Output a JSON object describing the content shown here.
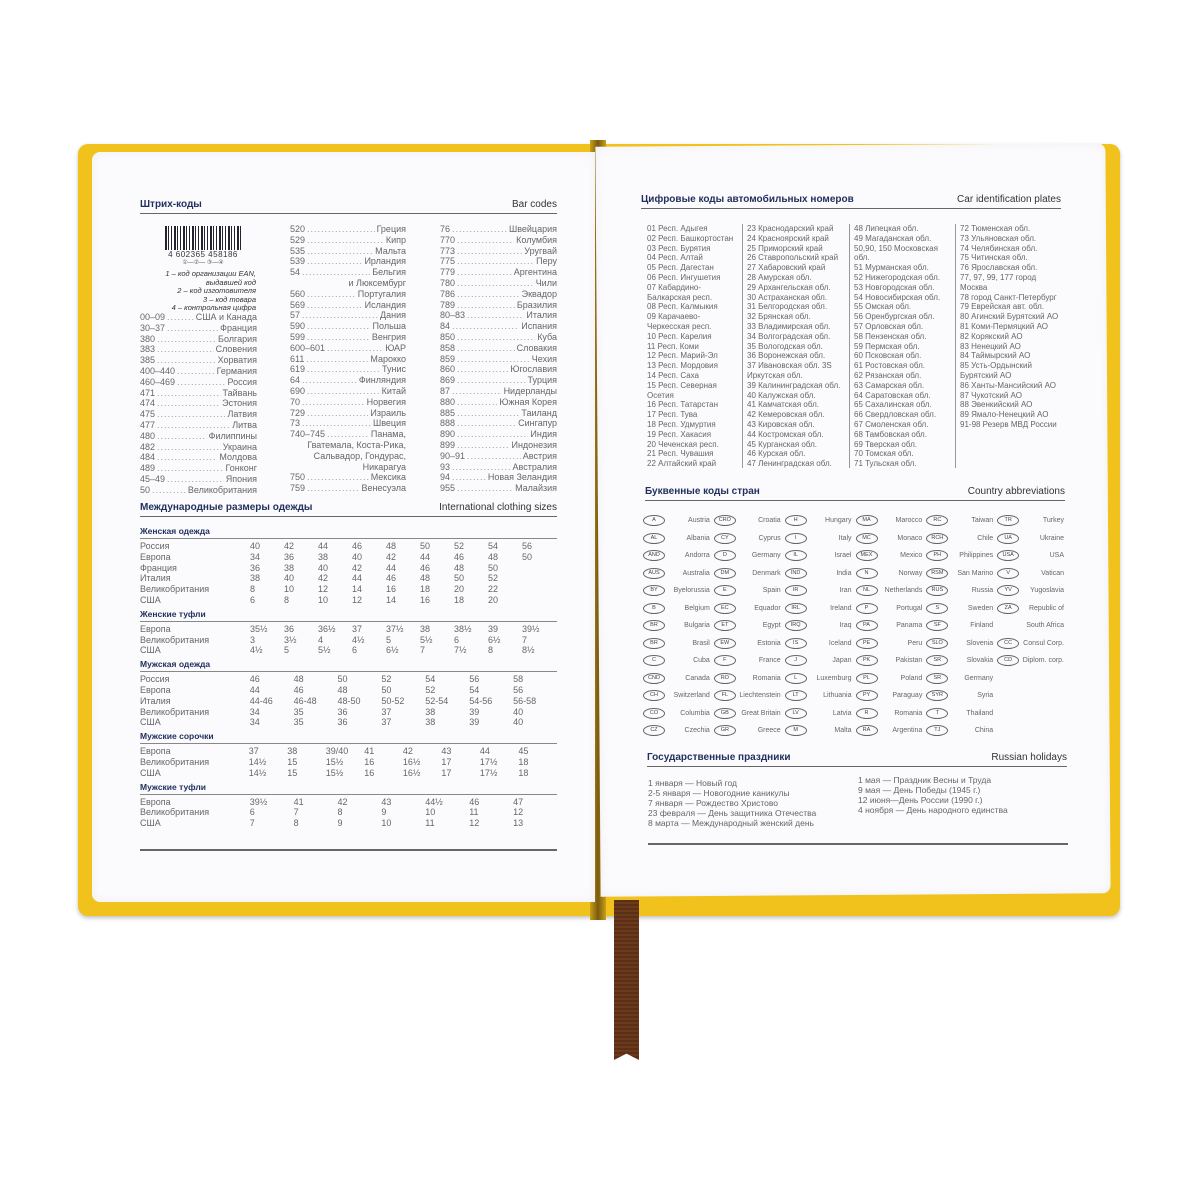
{
  "colors": {
    "cover": "#f1c11c",
    "heading": "#22305e",
    "ribbon": "#6b3a1c"
  },
  "barcodes": {
    "title_ru": "Штрих-коды",
    "title_en": "Bar codes",
    "sample_number": "4 602365 458186",
    "sample_marks": "①—②— ③—④",
    "legend": [
      "1 – код организации EAN,",
      "выдавшей код",
      "2 – код изготовителя",
      "3 – код товара",
      "4 – контрольная цифра"
    ],
    "col1": [
      [
        "00–09",
        "США и Канада"
      ],
      [
        "30–37",
        "Франция"
      ],
      [
        "380",
        "Болгария"
      ],
      [
        "383",
        "Словения"
      ],
      [
        "385",
        "Хорватия"
      ],
      [
        "400–440",
        "Германия"
      ],
      [
        "460–469",
        "Россия"
      ],
      [
        "471",
        "Тайвань"
      ],
      [
        "474",
        "Эстония"
      ],
      [
        "475",
        "Латвия"
      ],
      [
        "477",
        "Литва"
      ],
      [
        "480",
        "Филиппины"
      ],
      [
        "482",
        "Украина"
      ],
      [
        "484",
        "Молдова"
      ],
      [
        "489",
        "Гонконг"
      ],
      [
        "45–49",
        "Япония"
      ],
      [
        "50",
        "Великобритания"
      ]
    ],
    "col2": [
      [
        "520",
        "Греция"
      ],
      [
        "529",
        "Кипр"
      ],
      [
        "535",
        "Мальта"
      ],
      [
        "539",
        "Ирландия"
      ],
      [
        "54",
        "Бельгия"
      ],
      [
        "",
        "и Люксембург"
      ],
      [
        "560",
        "Португалия"
      ],
      [
        "569",
        "Исландия"
      ],
      [
        "57",
        "Дания"
      ],
      [
        "590",
        "Польша"
      ],
      [
        "599",
        "Венгрия"
      ],
      [
        "600–601",
        "ЮАР"
      ],
      [
        "611",
        "Марокко"
      ],
      [
        "619",
        "Тунис"
      ],
      [
        "64",
        "Финляндия"
      ],
      [
        "690",
        "Китай"
      ],
      [
        "70",
        "Норвегия"
      ],
      [
        "729",
        "Израиль"
      ],
      [
        "73",
        "Швеция"
      ],
      [
        "740–745",
        "Панама,"
      ],
      [
        "",
        "Гватемала, Коста-Рика,"
      ],
      [
        "",
        "Сальвадор, Гондурас,"
      ],
      [
        "",
        "Никарагуа"
      ],
      [
        "750",
        "Мексика"
      ],
      [
        "759",
        "Венесуэла"
      ]
    ],
    "col3": [
      [
        "76",
        "Швейцария"
      ],
      [
        "770",
        "Колумбия"
      ],
      [
        "773",
        "Уругвай"
      ],
      [
        "775",
        "Перу"
      ],
      [
        "779",
        "Аргентина"
      ],
      [
        "780",
        "Чили"
      ],
      [
        "786",
        "Эквадор"
      ],
      [
        "789",
        "Бразилия"
      ],
      [
        "80–83",
        "Италия"
      ],
      [
        "84",
        "Испания"
      ],
      [
        "850",
        "Куба"
      ],
      [
        "858",
        "Словакия"
      ],
      [
        "859",
        "Чехия"
      ],
      [
        "860",
        "Югославия"
      ],
      [
        "869",
        "Турция"
      ],
      [
        "87",
        "Нидерланды"
      ],
      [
        "880",
        "Южная Корея"
      ],
      [
        "885",
        "Таиланд"
      ],
      [
        "888",
        "Сингапур"
      ],
      [
        "890",
        "Индия"
      ],
      [
        "899",
        "Индонезия"
      ],
      [
        "90–91",
        "Австрия"
      ],
      [
        "93",
        "Австралия"
      ],
      [
        "94",
        "Новая Зеландия"
      ],
      [
        "955",
        "Малайзия"
      ]
    ]
  },
  "clothing": {
    "title_ru": "Международные размеры одежды",
    "title_en": "International clothing sizes",
    "sections": [
      {
        "title": "Женская одежда",
        "rows": [
          [
            "Россия",
            "40",
            "42",
            "44",
            "46",
            "48",
            "50",
            "52",
            "54",
            "56"
          ],
          [
            "Европа",
            "34",
            "36",
            "38",
            "40",
            "42",
            "44",
            "46",
            "48",
            "50"
          ],
          [
            "Франция",
            "36",
            "38",
            "40",
            "42",
            "44",
            "46",
            "48",
            "50"
          ],
          [
            "Италия",
            "38",
            "40",
            "42",
            "44",
            "46",
            "48",
            "50",
            "52"
          ],
          [
            "Великобритания",
            "8",
            "10",
            "12",
            "14",
            "16",
            "18",
            "20",
            "22"
          ],
          [
            "США",
            "6",
            "8",
            "10",
            "12",
            "14",
            "16",
            "18",
            "20"
          ]
        ]
      },
      {
        "title": "Женские туфли",
        "rows": [
          [
            "Европа",
            "35½",
            "36",
            "36½",
            "37",
            "37½",
            "38",
            "38½",
            "39",
            "39½"
          ],
          [
            "Великобритания",
            "3",
            "3½",
            "4",
            "4½",
            "5",
            "5½",
            "6",
            "6½",
            "7"
          ],
          [
            "США",
            "4½",
            "5",
            "5½",
            "6",
            "6½",
            "7",
            "7½",
            "8",
            "8½"
          ]
        ]
      },
      {
        "title": "Мужская одежда",
        "wide": true,
        "rows": [
          [
            "Россия",
            "46",
            "48",
            "50",
            "52",
            "54",
            "56",
            "58"
          ],
          [
            "Европа",
            "44",
            "46",
            "48",
            "50",
            "52",
            "54",
            "56"
          ],
          [
            "Италия",
            "44-46",
            "46-48",
            "48-50",
            "50-52",
            "52-54",
            "54-56",
            "56-58"
          ],
          [
            "Великобритания",
            "34",
            "35",
            "36",
            "37",
            "38",
            "39",
            "40"
          ],
          [
            "США",
            "34",
            "35",
            "36",
            "37",
            "38",
            "39",
            "40"
          ]
        ]
      },
      {
        "title": "Мужские сорочки",
        "mid": true,
        "rows": [
          [
            "Европа",
            "37",
            "38",
            "39/40",
            "41",
            "42",
            "43",
            "44",
            "45"
          ],
          [
            "Великобритания",
            "14½",
            "15",
            "15½",
            "16",
            "16½",
            "17",
            "17½",
            "18"
          ],
          [
            "США",
            "14½",
            "15",
            "15½",
            "16",
            "16½",
            "17",
            "17½",
            "18"
          ]
        ]
      },
      {
        "title": "Мужские туфли",
        "wide": true,
        "rows": [
          [
            "Европа",
            "39½",
            "41",
            "42",
            "43",
            "44½",
            "46",
            "47"
          ],
          [
            "Великобритания",
            "6",
            "7",
            "8",
            "9",
            "10",
            "11",
            "12"
          ],
          [
            "США",
            "7",
            "8",
            "9",
            "10",
            "11",
            "12",
            "13"
          ]
        ]
      }
    ]
  },
  "car_plates": {
    "title_ru": "Цифровые коды автомобильных номеров",
    "title_en": "Car identification plates",
    "columns": [
      [
        "01 Респ. Адыгея",
        "02 Респ. Башкортостан",
        "03 Респ. Бурятия",
        "04 Респ. Алтай",
        "05 Респ. Дагестан",
        "06 Респ. Ингушетия",
        "07 Кабардино-",
        "Балкарская респ.",
        "08 Респ. Калмыкия",
        "09 Карачаево-",
        "Черкесская респ.",
        "10 Респ. Карелия",
        "11 Респ. Коми",
        "12 Респ. Марий-Эл",
        "13 Респ. Мордовия",
        "14 Респ. Саха",
        "15 Респ. Северная",
        "Осетия",
        "16 Респ. Татарстан",
        "17 Респ. Тува",
        "18 Респ. Удмуртия",
        "19 Респ. Хакасия",
        "20 Чеченская респ.",
        "21 Респ. Чувашия",
        "22 Алтайский край"
      ],
      [
        "23 Краснодарский край",
        "24 Красноярский край",
        "25 Приморский край",
        "26 Ставропольский край",
        "27 Хабаровский край",
        "28 Амурская обл.",
        "29 Архангельская обл.",
        "30 Астраханская обл.",
        "31 Белгородская обл.",
        "32 Брянская обл.",
        "33 Владимирская обл.",
        "34 Волгоградская обл.",
        "35 Вологодская обл.",
        "36 Воронежская обл.",
        "37 Ивановская обл. 3S",
        "Иркутская обл.",
        "39 Калининградская обл.",
        "40 Калужская обл.",
        "41 Камчатская обл.",
        "42 Кемеровская обл.",
        "43 Кировская обл.",
        "44 Костромская обл.",
        "45 Курганская обл.",
        "46 Курская обл.",
        "47 Ленинградская обл."
      ],
      [
        "48 Липецкая обл.",
        "49 Магаданская обл.",
        "50,90, 150 Московская",
        "обл.",
        "51 Мурманская обл.",
        "52 Нижегородская обл.",
        "53 Новгородская обл.",
        "54 Новосибирская обл.",
        "55 Омская обл.",
        "56 Оренбургская обл.",
        "57 Орловская обл.",
        "58 Пензенская обл.",
        "59 Пермская обл.",
        "60 Псковская обл.",
        "61 Ростовская обл.",
        "62 Рязанская обл.",
        "63 Самарская обл.",
        "64 Саратовская обл.",
        "65 Сахалинская обл.",
        "66 Свердловская обл.",
        "67 Смоленская обл.",
        "68 Тамбовская обл.",
        "69 Тверская обл.",
        "70 Томская обл.",
        "71 Тульская обл."
      ],
      [
        "72 Тюменская обл.",
        "73 Ульяновская обл.",
        "74 Челябинская обл.",
        "75 Читинская обл.",
        "76 Ярославская обл.",
        "77, 97, 99, 177 город",
        "Москва",
        "78 город Санкт-Петербург",
        "79 Еврейская авт. обл.",
        "80 Агинский Бурятский АО",
        "81 Коми-Пермяцкий АО",
        "82 Корякский АО",
        "83 Ненецкий АО",
        "84 Таймырский АО",
        "85 Усть-Ордынский",
        "Бурятский АО",
        "86 Ханты-Мансийский АО",
        "87 Чукотский АО",
        "88 Эвенкийский АО",
        "89 Ямало-Ненецкий АО",
        "91-98 Резерв МВД России"
      ]
    ]
  },
  "countries": {
    "title_ru": "Буквенные коды стран",
    "title_en": "Country abbreviations",
    "columns": [
      [
        [
          "A",
          "Austria"
        ],
        [
          "AL",
          "Albania"
        ],
        [
          "AND",
          "Andorra"
        ],
        [
          "AUS",
          "Australia"
        ],
        [
          "BY",
          "Byelorussia"
        ],
        [
          "B",
          "Belgium"
        ],
        [
          "BR",
          "Bulgaria"
        ],
        [
          "BR",
          "Brasil"
        ],
        [
          "C",
          "Cuba"
        ],
        [
          "CND",
          "Canada"
        ],
        [
          "CH",
          "Switzerland"
        ],
        [
          "CO",
          "Columbia"
        ],
        [
          "CZ",
          "Czechia"
        ]
      ],
      [
        [
          "CRO",
          "Croatia"
        ],
        [
          "CY",
          "Cyprus"
        ],
        [
          "D",
          "Germany"
        ],
        [
          "DM",
          "Denmark"
        ],
        [
          "E",
          "Spain"
        ],
        [
          "EC",
          "Equador"
        ],
        [
          "ET",
          "Egypt"
        ],
        [
          "EW",
          "Estonia"
        ],
        [
          "F",
          "France"
        ],
        [
          "RO",
          "Romania"
        ],
        [
          "FL",
          "Liechtenstein"
        ],
        [
          "GB",
          "Great Britain"
        ],
        [
          "GR",
          "Greece"
        ]
      ],
      [
        [
          "H",
          "Hungary"
        ],
        [
          "I",
          "Italy"
        ],
        [
          "IL",
          "Israel"
        ],
        [
          "IND",
          "India"
        ],
        [
          "IR",
          "Iran"
        ],
        [
          "IRL",
          "Ireland"
        ],
        [
          "IRQ",
          "Iraq"
        ],
        [
          "IS",
          "Iceland"
        ],
        [
          "J",
          "Japan"
        ],
        [
          "L",
          "Luxemburg"
        ],
        [
          "LT",
          "Lithuania"
        ],
        [
          "LV",
          "Latvia"
        ],
        [
          "M",
          "Malta"
        ]
      ],
      [
        [
          "MA",
          "Marocco"
        ],
        [
          "MC",
          "Monaco"
        ],
        [
          "MEX",
          "Mexico"
        ],
        [
          "N",
          "Norway"
        ],
        [
          "NL",
          "Netherlands"
        ],
        [
          "P",
          "Portugal"
        ],
        [
          "PA",
          "Panama"
        ],
        [
          "PE",
          "Peru"
        ],
        [
          "PK",
          "Pakistan"
        ],
        [
          "PL",
          "Poland"
        ],
        [
          "PY",
          "Paraguay"
        ],
        [
          "R",
          "Romania"
        ],
        [
          "RA",
          "Argentina"
        ]
      ],
      [
        [
          "RC",
          "Taiwan"
        ],
        [
          "RCH",
          "Chile"
        ],
        [
          "PH",
          "Philippines"
        ],
        [
          "RSM",
          "San Marino"
        ],
        [
          "RUS",
          "Russia"
        ],
        [
          "S",
          "Sweden"
        ],
        [
          "SF",
          "Finland"
        ],
        [
          "SLO",
          "Slovenia"
        ],
        [
          "SR",
          "Slovakia"
        ],
        [
          "SR",
          "Germany"
        ],
        [
          "SYR",
          "Syria"
        ],
        [
          "T",
          "Thailand"
        ],
        [
          "TJ",
          "China"
        ]
      ],
      [
        [
          "TR",
          "Turkey"
        ],
        [
          "UA",
          "Ukraine"
        ],
        [
          "USA",
          "USA"
        ],
        [
          "V",
          "Vatican"
        ],
        [
          "YV",
          "Yugoslavia"
        ],
        [
          "ZA",
          "Republic of"
        ],
        [
          "",
          "South Africa"
        ],
        [
          "CC",
          "Consul Corp."
        ],
        [
          "CD",
          "Diplom. corp."
        ]
      ]
    ]
  },
  "holidays": {
    "title_ru": "Государственные праздники",
    "title_en": "Russian holidays",
    "col1": [
      "1 января — Новый год",
      "2-5 января — Новогодние каникулы",
      "7 января — Рождество Христово",
      "23 февраля — День защитника Отечества",
      "8  марта — Международный женский день"
    ],
    "col2": [
      "1 мая — Праздник Весны и Труда",
      "9 мая — День Победы (1945 г.)",
      "12 июня—День России (1990 г.)",
      "4 ноября — День народного единства"
    ]
  }
}
